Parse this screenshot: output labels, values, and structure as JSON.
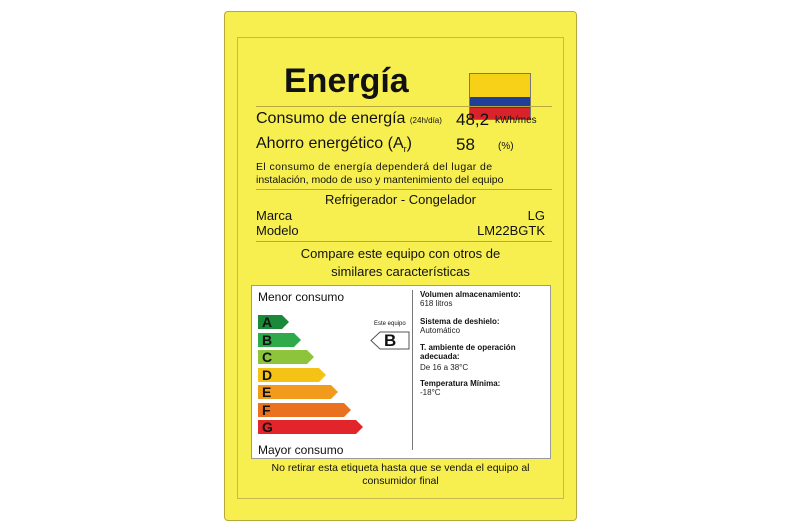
{
  "title": "Energía",
  "flag_colors": [
    "#f7d117",
    "#1f3f99",
    "#d8232a"
  ],
  "consumo": {
    "label": "Consumo de energía",
    "unit_note": "(24h/día)",
    "value": "48,2",
    "unit": "kWh/mes"
  },
  "ahorro": {
    "label": "Ahorro energético (A",
    "sub": "r",
    "close": ")",
    "value": "58",
    "unit": "(%)"
  },
  "note": [
    "El consumo de energía dependerá del lugar de",
    "instalación, modo de uso y mantenimiento del equipo"
  ],
  "type": "Refrigerador - Congelador",
  "marca": {
    "label": "Marca",
    "value": "LG"
  },
  "modelo": {
    "label": "Modelo",
    "value": "LM22BGTK"
  },
  "compare": [
    "Compare este equipo con otros de",
    "similares características"
  ],
  "scale": {
    "top": "Menor consumo",
    "bottom": "Mayor consumo",
    "classes": [
      {
        "l": "A",
        "c": "#1a8a3a"
      },
      {
        "l": "B",
        "c": "#2eaa4a"
      },
      {
        "l": "C",
        "c": "#8cc43c"
      },
      {
        "l": "D",
        "c": "#f5c316"
      },
      {
        "l": "E",
        "c": "#f29a1c"
      },
      {
        "l": "F",
        "c": "#ea7120"
      },
      {
        "l": "G",
        "c": "#e1252b"
      }
    ],
    "pointer_label": "Este equipo",
    "rating": "B"
  },
  "info": [
    {
      "label": "Volumen almacenamiento:",
      "value": "618 litros"
    },
    {
      "label": "Sistema de deshielo:",
      "value": "Automático"
    },
    {
      "label": "T. ambiente de operación adecuada:",
      "value": "De 16 a 38°C"
    },
    {
      "label": "Temperatura Mínima:",
      "value": "-18°C"
    }
  ],
  "footer": [
    "No retirar esta etiqueta hasta que se venda el equipo al",
    "consumidor final"
  ]
}
